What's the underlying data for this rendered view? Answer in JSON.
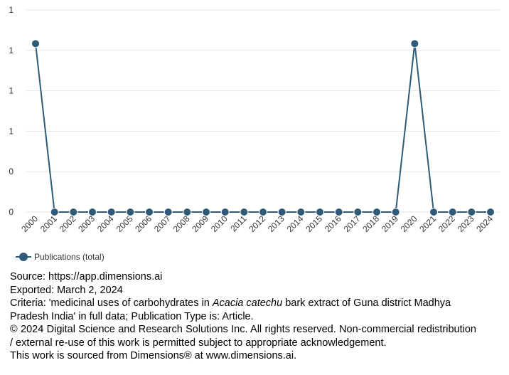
{
  "chart_data": {
    "type": "line",
    "x": [
      "2000",
      "2001",
      "2002",
      "2003",
      "2004",
      "2005",
      "2006",
      "2007",
      "2008",
      "2009",
      "2010",
      "2011",
      "2012",
      "2013",
      "2014",
      "2015",
      "2016",
      "2017",
      "2018",
      "2019",
      "2020",
      "2021",
      "2022",
      "2023",
      "2024"
    ],
    "series": [
      {
        "name": "Publications (total)",
        "values": [
          1,
          0,
          0,
          0,
          0,
          0,
          0,
          0,
          0,
          0,
          0,
          0,
          0,
          0,
          0,
          0,
          0,
          0,
          0,
          0,
          1,
          0,
          0,
          0,
          0
        ]
      }
    ],
    "y_ticks": [
      "1",
      "1",
      "1",
      "1",
      "0",
      "0"
    ],
    "ylim": [
      0,
      1.2
    ],
    "grid": true,
    "legend_position": "bottom-left",
    "color": "#2e5b7a"
  },
  "legend": {
    "label": "Publications (total)"
  },
  "footer": {
    "source": "Source: https://app.dimensions.ai",
    "exported": "Exported: March 2, 2024",
    "criteria_prefix": "Criteria: 'medicinal uses of carbohydrates in ",
    "criteria_italic": "Acacia catechu",
    "criteria_suffix": " bark extract of Guna district Madhya Pradesh India' in full data; Publication Type is: Article.",
    "copyright": "© 2024 Digital Science and Research Solutions Inc. All rights reserved. Non-commercial redistribution / external re-use of this work is permitted subject to appropriate acknowledgement.",
    "sourced": "This work is sourced from Dimensions® at www.dimensions.ai."
  }
}
